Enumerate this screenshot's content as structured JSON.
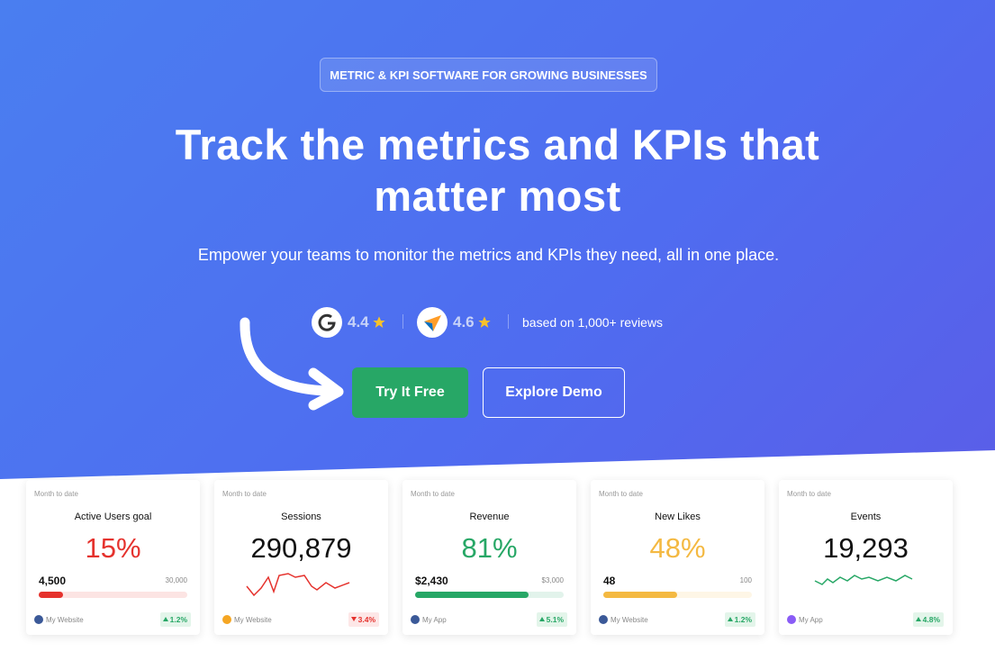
{
  "badge": "METRIC & KPI SOFTWARE FOR GROWING BUSINESSES",
  "headline": "Track the metrics and KPIs that matter most",
  "subheadline": "Empower your teams to monitor the metrics and KPIs they need, all in one place.",
  "ratings": [
    {
      "score": "4.4"
    },
    {
      "score": "4.6"
    }
  ],
  "reviews_note": "based on 1,000+ reviews",
  "buttons": {
    "primary": "Try It Free",
    "secondary": "Explore Demo"
  },
  "cards": [
    {
      "period": "Month to date",
      "title": "Active Users goal",
      "value": "15%",
      "color": "#e5322d",
      "current": "4,500",
      "goal": "30,000",
      "source": "My Website",
      "icon_color": "#3b5998",
      "change": "1.2%",
      "direction": "up"
    },
    {
      "period": "Month to date",
      "title": "Sessions",
      "value": "290,879",
      "color": "#111111",
      "spark_color": "#e5322d",
      "source": "My Website",
      "icon_color": "#f5a623",
      "change": "3.4%",
      "direction": "down"
    },
    {
      "period": "Month to date",
      "title": "Revenue",
      "value": "81%",
      "color": "#27a766",
      "current": "$2,430",
      "goal": "$3,000",
      "source": "My App",
      "icon_color": "#3b5998",
      "change": "5.1%",
      "direction": "up"
    },
    {
      "period": "Month to date",
      "title": "New Likes",
      "value": "48%",
      "color": "#f4b942",
      "current": "48",
      "goal": "100",
      "source": "My Website",
      "icon_color": "#3b5998",
      "change": "1.2%",
      "direction": "up"
    },
    {
      "period": "Month to date",
      "title": "Events",
      "value": "19,293",
      "color": "#111111",
      "spark_color": "#27a766",
      "source": "My App",
      "icon_color": "#8a5cf6",
      "change": "4.8%",
      "direction": "up"
    }
  ]
}
